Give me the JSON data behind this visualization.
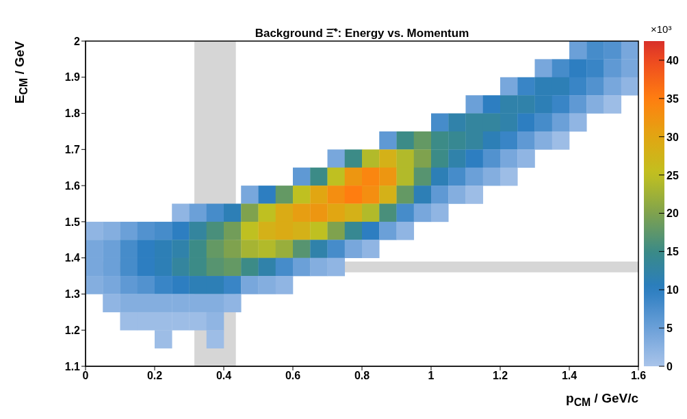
{
  "chart_data": {
    "type": "scatter",
    "title": "Background Ξ̄⁺: Energy vs. Momentum",
    "xlabel": "p$_{CM}$ / GeV/c",
    "ylabel": "E$_{CM}$ / GeV",
    "clabel": "×10³",
    "xlim": [
      0,
      1.6
    ],
    "xticks": [
      0,
      0.2,
      0.4,
      0.6,
      0.8,
      1,
      1.2,
      1.4,
      1.6
    ],
    "ylim": [
      1.1,
      2
    ],
    "yticks": [
      1.1,
      1.2,
      1.3,
      1.4,
      1.5,
      1.6,
      1.7,
      1.8,
      1.9,
      2
    ],
    "clim": [
      0,
      42.5
    ],
    "cticks": [
      0,
      5,
      10,
      15,
      20,
      25,
      30,
      35,
      40
    ],
    "marker": "square",
    "bands": [
      {
        "axis": "x",
        "from": 0.315,
        "to": 0.435,
        "color": "#c8c8c8"
      },
      {
        "axis": "y",
        "from": 1.36,
        "to": 1.39,
        "color": "#c8c8c8"
      }
    ],
    "x": [
      1.425,
      1.475,
      1.525,
      1.575,
      1.325,
      1.375,
      1.425,
      1.475,
      1.525,
      1.575,
      1.225,
      1.275,
      1.325,
      1.375,
      1.425,
      1.475,
      1.525,
      1.575,
      1.125,
      1.175,
      1.225,
      1.275,
      1.325,
      1.375,
      1.425,
      1.475,
      1.525,
      1.025,
      1.075,
      1.125,
      1.175,
      1.225,
      1.275,
      1.325,
      1.375,
      1.425,
      0.875,
      0.925,
      0.975,
      1.025,
      1.075,
      1.125,
      1.175,
      1.225,
      1.275,
      1.325,
      1.375,
      0.725,
      0.775,
      0.825,
      0.875,
      0.925,
      0.975,
      1.025,
      1.075,
      1.125,
      1.175,
      1.225,
      1.275,
      0.625,
      0.675,
      0.725,
      0.775,
      0.825,
      0.875,
      0.925,
      0.975,
      1.025,
      1.075,
      1.125,
      1.175,
      1.225,
      0.475,
      0.525,
      0.575,
      0.625,
      0.675,
      0.725,
      0.775,
      0.825,
      0.875,
      0.925,
      0.975,
      1.025,
      1.075,
      1.125,
      0.275,
      0.325,
      0.375,
      0.425,
      0.475,
      0.525,
      0.575,
      0.625,
      0.675,
      0.725,
      0.775,
      0.825,
      0.875,
      0.925,
      0.975,
      1.025,
      0.025,
      0.075,
      0.125,
      0.175,
      0.225,
      0.275,
      0.325,
      0.375,
      0.425,
      0.475,
      0.525,
      0.575,
      0.625,
      0.675,
      0.725,
      0.775,
      0.825,
      0.875,
      0.925,
      0.025,
      0.075,
      0.125,
      0.175,
      0.225,
      0.275,
      0.325,
      0.375,
      0.425,
      0.475,
      0.525,
      0.575,
      0.625,
      0.675,
      0.725,
      0.775,
      0.825,
      0.025,
      0.075,
      0.125,
      0.175,
      0.225,
      0.275,
      0.325,
      0.375,
      0.425,
      0.475,
      0.525,
      0.575,
      0.625,
      0.675,
      0.725,
      0.025,
      0.075,
      0.125,
      0.175,
      0.225,
      0.275,
      0.325,
      0.375,
      0.425,
      0.475,
      0.525,
      0.575,
      0.075,
      0.125,
      0.175,
      0.225,
      0.275,
      0.325,
      0.375,
      0.425,
      0.125,
      0.175,
      0.225,
      0.275,
      0.325,
      0.375,
      0.225,
      0.375
    ],
    "values": [
      1.975,
      1.975,
      1.975,
      1.975,
      1.925,
      1.925,
      1.925,
      1.925,
      1.925,
      1.925,
      1.875,
      1.875,
      1.875,
      1.875,
      1.875,
      1.875,
      1.875,
      1.875,
      1.825,
      1.825,
      1.825,
      1.825,
      1.825,
      1.825,
      1.825,
      1.825,
      1.825,
      1.775,
      1.775,
      1.775,
      1.775,
      1.775,
      1.775,
      1.775,
      1.775,
      1.775,
      1.725,
      1.725,
      1.725,
      1.725,
      1.725,
      1.725,
      1.725,
      1.725,
      1.725,
      1.725,
      1.725,
      1.675,
      1.675,
      1.675,
      1.675,
      1.675,
      1.675,
      1.675,
      1.675,
      1.675,
      1.675,
      1.675,
      1.675,
      1.625,
      1.625,
      1.625,
      1.625,
      1.625,
      1.625,
      1.625,
      1.625,
      1.625,
      1.625,
      1.625,
      1.625,
      1.625,
      1.575,
      1.575,
      1.575,
      1.575,
      1.575,
      1.575,
      1.575,
      1.575,
      1.575,
      1.575,
      1.575,
      1.575,
      1.575,
      1.575,
      1.525,
      1.525,
      1.525,
      1.525,
      1.525,
      1.525,
      1.525,
      1.525,
      1.525,
      1.525,
      1.525,
      1.525,
      1.525,
      1.525,
      1.525,
      1.525,
      1.475,
      1.475,
      1.475,
      1.475,
      1.475,
      1.475,
      1.475,
      1.475,
      1.475,
      1.475,
      1.475,
      1.475,
      1.475,
      1.475,
      1.475,
      1.475,
      1.475,
      1.475,
      1.475,
      1.425,
      1.425,
      1.425,
      1.425,
      1.425,
      1.425,
      1.425,
      1.425,
      1.425,
      1.425,
      1.425,
      1.425,
      1.425,
      1.425,
      1.425,
      1.425,
      1.425,
      1.375,
      1.375,
      1.375,
      1.375,
      1.375,
      1.375,
      1.375,
      1.375,
      1.375,
      1.375,
      1.375,
      1.375,
      1.375,
      1.375,
      1.375,
      1.325,
      1.325,
      1.325,
      1.325,
      1.325,
      1.325,
      1.325,
      1.325,
      1.325,
      1.325,
      1.325,
      1.325,
      1.275,
      1.275,
      1.275,
      1.275,
      1.275,
      1.275,
      1.275,
      1.275,
      1.225,
      1.225,
      1.225,
      1.225,
      1.225,
      1.225,
      1.175,
      1.175
    ],
    "cvalues": [
      5,
      8,
      7,
      4,
      4,
      8,
      10,
      9,
      6,
      4,
      4,
      9,
      11,
      11,
      9,
      7,
      4,
      2,
      5,
      10,
      12,
      12,
      11,
      9,
      6,
      3,
      1,
      8,
      12,
      13,
      13,
      12,
      10,
      8,
      5,
      2,
      6,
      15,
      18,
      15,
      14,
      13,
      11,
      9,
      6,
      3,
      1,
      4,
      15,
      24,
      28,
      24,
      20,
      15,
      12,
      10,
      7,
      4,
      2,
      6,
      15,
      25,
      32,
      34,
      32,
      24,
      17,
      11,
      8,
      5,
      3,
      1,
      4,
      10,
      18,
      25,
      30,
      33,
      35,
      33,
      28,
      18,
      11,
      6,
      3,
      1,
      2,
      5,
      8,
      11,
      20,
      25,
      29,
      31,
      32,
      30,
      28,
      24,
      16,
      8,
      4,
      2,
      2,
      3,
      5,
      7,
      8,
      10,
      13,
      16,
      19,
      25,
      28,
      29,
      28,
      25,
      20,
      14,
      10,
      5,
      2,
      4,
      5,
      8,
      10,
      11,
      12,
      15,
      18,
      20,
      23,
      24,
      22,
      17,
      12,
      8,
      4,
      2,
      4,
      5,
      8,
      10,
      11,
      13,
      15,
      17,
      18,
      15,
      12,
      8,
      5,
      3,
      2,
      3,
      4,
      6,
      7,
      9,
      10,
      11,
      11,
      9,
      4,
      3,
      2,
      2,
      3,
      3,
      3,
      3,
      3,
      3,
      2,
      1,
      1,
      1,
      1,
      1,
      2,
      1,
      1
    ]
  }
}
